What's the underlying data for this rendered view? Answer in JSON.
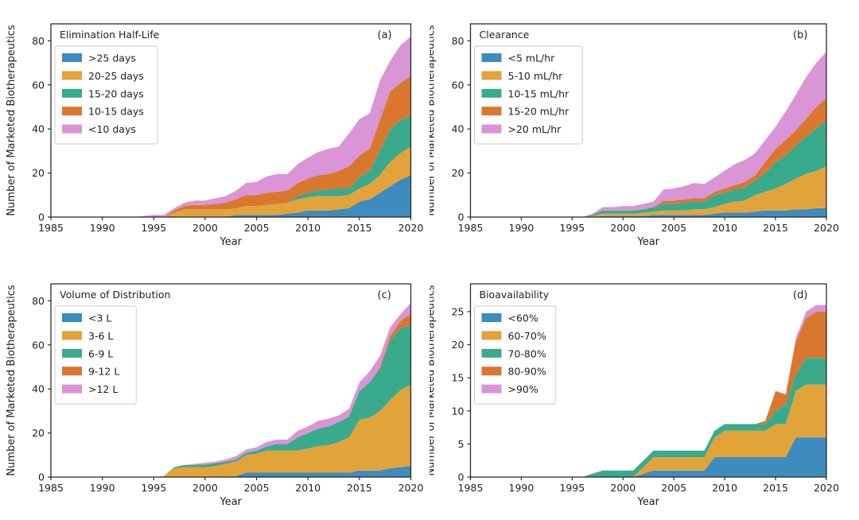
{
  "figure": {
    "background": "#ffffff",
    "shared_ylabel": "Number of Marketed Biotherapeutics",
    "shared_xlabel": "Year"
  },
  "palette": {
    "blue": "#3e8cbe",
    "gold": "#e3a33b",
    "green": "#3aaa8c",
    "orange": "#d9772f",
    "pink": "#d995d5",
    "axis": "#2b2b2b",
    "legend_border": "#cccccc"
  },
  "chart_data": [
    {
      "type": "area",
      "stacked": true,
      "panel_letter": "(a)",
      "title": "Elimination Half-Life",
      "xlabel": "Year",
      "ylabel": "Number of Marketed Biotherapeutics",
      "xlim": [
        1985,
        2020
      ],
      "ylim": [
        0,
        87.7
      ],
      "x_ticks": [
        1985,
        1990,
        1995,
        2000,
        2005,
        2010,
        2015,
        2020
      ],
      "y_ticks": [
        0,
        20,
        40,
        60,
        80
      ],
      "legend_position": "upper left",
      "x": [
        1985,
        1986,
        1987,
        1988,
        1989,
        1990,
        1991,
        1992,
        1993,
        1994,
        1995,
        1996,
        1997,
        1998,
        1999,
        2000,
        2001,
        2002,
        2003,
        2004,
        2005,
        2006,
        2007,
        2008,
        2009,
        2010,
        2011,
        2012,
        2013,
        2014,
        2015,
        2016,
        2017,
        2018,
        2019,
        2020
      ],
      "series": [
        {
          "name": ">25 days",
          "color": "#3e8cbe",
          "values": [
            0,
            0,
            0,
            0,
            0,
            0,
            0,
            0,
            0,
            0,
            0,
            0,
            0,
            0,
            0,
            0,
            0,
            0,
            1,
            1,
            1,
            1,
            1,
            1.5,
            2,
            3,
            3,
            3,
            3.5,
            4,
            7,
            8,
            11,
            14,
            17,
            19
          ]
        },
        {
          "name": "20-25 days",
          "color": "#e3a33b",
          "values": [
            0,
            0,
            0,
            0,
            0,
            0,
            0,
            0,
            0,
            0,
            0,
            0,
            2,
            3.5,
            3.5,
            3.5,
            3.5,
            3.5,
            3,
            4,
            4,
            4.5,
            5,
            5,
            6,
            6,
            6.5,
            6.5,
            6,
            6,
            6,
            7,
            8,
            11,
            12,
            13
          ]
        },
        {
          "name": "15-20 days",
          "color": "#3aaa8c",
          "values": [
            0,
            0,
            0,
            0,
            0,
            0,
            0,
            0,
            0,
            0,
            0,
            0,
            0,
            0,
            0,
            0,
            0,
            0,
            0,
            0,
            0,
            0,
            0,
            0,
            1.5,
            2,
            2.5,
            3,
            3.5,
            3,
            5,
            6,
            11,
            15,
            15,
            14
          ]
        },
        {
          "name": "10-15 days",
          "color": "#d9772f",
          "values": [
            0,
            0,
            0,
            0,
            0,
            0,
            0,
            0,
            0,
            0,
            0,
            0,
            1,
            1.5,
            2,
            2,
            2.5,
            3,
            4,
            5,
            5,
            5.5,
            5.5,
            5.5,
            6,
            6.5,
            7,
            7,
            8,
            10,
            10,
            10,
            14,
            17,
            17,
            18
          ]
        },
        {
          "name": "<10 days",
          "color": "#d995d5",
          "values": [
            0,
            0,
            0,
            0,
            0,
            0,
            0,
            0,
            0,
            0.5,
            1,
            1,
            1,
            1.5,
            2,
            2,
            2.5,
            3,
            4,
            5.5,
            6,
            7.5,
            8,
            7.5,
            8.5,
            9.5,
            10.5,
            11.5,
            11,
            15,
            16.5,
            16,
            18,
            14,
            17,
            18
          ]
        }
      ]
    },
    {
      "type": "area",
      "stacked": true,
      "panel_letter": "(b)",
      "title": "Clearance",
      "xlabel": "Year",
      "ylabel": "Number of Marketed Biotherapeutics",
      "xlim": [
        1985,
        2020
      ],
      "ylim": [
        0,
        87.7
      ],
      "x_ticks": [
        1985,
        1990,
        1995,
        2000,
        2005,
        2010,
        2015,
        2020
      ],
      "y_ticks": [
        0,
        20,
        40,
        60,
        80
      ],
      "legend_position": "upper left",
      "x": [
        1985,
        1986,
        1987,
        1988,
        1989,
        1990,
        1991,
        1992,
        1993,
        1994,
        1995,
        1996,
        1997,
        1998,
        1999,
        2000,
        2001,
        2002,
        2003,
        2004,
        2005,
        2006,
        2007,
        2008,
        2009,
        2010,
        2011,
        2012,
        2013,
        2014,
        2015,
        2016,
        2017,
        2018,
        2019,
        2020
      ],
      "series": [
        {
          "name": "<5 mL/hr",
          "color": "#3e8cbe",
          "values": [
            0,
            0,
            0,
            0,
            0,
            0,
            0,
            0,
            0,
            0,
            0,
            0,
            0,
            0.5,
            0.5,
            0.5,
            0.5,
            0.5,
            1,
            1,
            1,
            1,
            1,
            1,
            1.5,
            2,
            2,
            2,
            2.5,
            3,
            3,
            3,
            3.5,
            3.5,
            4,
            4
          ]
        },
        {
          "name": "5-10 mL/hr",
          "color": "#e3a33b",
          "values": [
            0,
            0,
            0,
            0,
            0,
            0,
            0,
            0,
            0,
            0,
            0,
            0,
            0.5,
            1,
            1,
            1,
            1,
            1.5,
            1.5,
            2,
            2,
            2,
            2.5,
            2.5,
            3,
            4,
            5,
            5.5,
            7.5,
            8.5,
            10,
            12,
            14,
            16,
            17,
            19
          ]
        },
        {
          "name": "10-15 mL/hr",
          "color": "#3aaa8c",
          "values": [
            0,
            0,
            0,
            0,
            0,
            0,
            0,
            0,
            0,
            0,
            0,
            0,
            0.5,
            1.5,
            1.5,
            1.5,
            1.5,
            1.5,
            2,
            3,
            3,
            3.5,
            3.5,
            3.5,
            5.5,
            5,
            5.5,
            6,
            6.5,
            8.5,
            12,
            13,
            15,
            17,
            19,
            21
          ]
        },
        {
          "name": "15-20 mL/hr",
          "color": "#d9772f",
          "values": [
            0,
            0,
            0,
            0,
            0,
            0,
            0,
            0,
            0,
            0,
            0,
            0,
            0,
            0,
            0,
            0,
            0,
            0,
            0,
            1.5,
            1.5,
            1.5,
            1.5,
            1.5,
            1.5,
            2,
            2,
            2.5,
            2.5,
            5,
            6,
            7,
            7,
            8,
            10,
            10
          ]
        },
        {
          "name": ">20 mL/hr",
          "color": "#d995d5",
          "values": [
            0,
            0,
            0,
            0,
            0,
            0,
            0,
            0,
            0,
            0,
            0,
            0,
            0.5,
            1.5,
            1.5,
            2,
            2,
            2.5,
            2.5,
            5,
            5.5,
            6,
            7,
            6.5,
            6.5,
            8,
            9.5,
            10,
            10,
            10,
            10,
            13,
            16,
            19,
            20,
            21
          ]
        }
      ]
    },
    {
      "type": "area",
      "stacked": true,
      "panel_letter": "(c)",
      "title": "Volume of Distribution",
      "xlabel": "Year",
      "ylabel": "Number of Marketed Biotherapeutics",
      "xlim": [
        1985,
        2020
      ],
      "ylim": [
        0,
        87.7
      ],
      "x_ticks": [
        1985,
        1990,
        1995,
        2000,
        2005,
        2010,
        2015,
        2020
      ],
      "y_ticks": [
        0,
        20,
        40,
        60,
        80
      ],
      "legend_position": "upper left",
      "x": [
        1985,
        1986,
        1987,
        1988,
        1989,
        1990,
        1991,
        1992,
        1993,
        1994,
        1995,
        1996,
        1997,
        1998,
        1999,
        2000,
        2001,
        2002,
        2003,
        2004,
        2005,
        2006,
        2007,
        2008,
        2009,
        2010,
        2011,
        2012,
        2013,
        2014,
        2015,
        2016,
        2017,
        2018,
        2019,
        2020
      ],
      "series": [
        {
          "name": "<3 L",
          "color": "#3e8cbe",
          "values": [
            0,
            0,
            0,
            0,
            0,
            0,
            0,
            0,
            0,
            0,
            0,
            0,
            0,
            0,
            0,
            0,
            0,
            0,
            0.5,
            2,
            2,
            2,
            2,
            2,
            2,
            2,
            2,
            2,
            2,
            2,
            3,
            3,
            3,
            4,
            4.5,
            5
          ]
        },
        {
          "name": "3-6 L",
          "color": "#e3a33b",
          "values": [
            0,
            0,
            0,
            0,
            0,
            0,
            0,
            0,
            0,
            0,
            0,
            0.5,
            4,
            4.5,
            4.5,
            4.5,
            5,
            6,
            6.5,
            8,
            8.5,
            10,
            10,
            10,
            10,
            11,
            12,
            12.5,
            14,
            16,
            23,
            24,
            27,
            31,
            35,
            37
          ]
        },
        {
          "name": "6-9 L",
          "color": "#3aaa8c",
          "values": [
            0,
            0,
            0,
            0,
            0,
            0,
            0,
            0,
            0,
            0,
            0,
            0,
            0.5,
            1,
            1,
            1.2,
            1.3,
            1,
            1,
            1,
            1.5,
            2,
            3,
            3,
            6,
            7,
            8,
            8.5,
            9,
            9.5,
            13,
            16,
            19,
            27,
            28,
            27
          ]
        },
        {
          "name": "9-12 L",
          "color": "#d9772f",
          "values": [
            0,
            0,
            0,
            0,
            0,
            0,
            0,
            0,
            0,
            0,
            0,
            0,
            0,
            0,
            0,
            0,
            0,
            0,
            0,
            0,
            0,
            0,
            0,
            0,
            0,
            0,
            0,
            0,
            0,
            0,
            0,
            0,
            1,
            2,
            3.5,
            5
          ]
        },
        {
          "name": ">12 L",
          "color": "#d995d5",
          "values": [
            0,
            0,
            0,
            0,
            0,
            0,
            0,
            0,
            0,
            0,
            0,
            0,
            0,
            0,
            0.5,
            0.8,
            0.7,
            1,
            1.5,
            1.5,
            1.5,
            2,
            2,
            2,
            3,
            3,
            3.5,
            3.5,
            3,
            3.5,
            4,
            5,
            5,
            4,
            3,
            5
          ]
        }
      ]
    },
    {
      "type": "area",
      "stacked": true,
      "panel_letter": "(d)",
      "title": "Bioavailability",
      "xlabel": "Year",
      "ylabel": "Number of Marketed Biotherapeutics",
      "xlim": [
        1985,
        2020
      ],
      "ylim": [
        0,
        29.2
      ],
      "x_ticks": [
        1985,
        1990,
        1995,
        2000,
        2005,
        2010,
        2015,
        2020
      ],
      "y_ticks": [
        0,
        5,
        10,
        15,
        20,
        25
      ],
      "legend_position": "upper left",
      "x": [
        1985,
        1986,
        1987,
        1988,
        1989,
        1990,
        1991,
        1992,
        1993,
        1994,
        1995,
        1996,
        1997,
        1998,
        1999,
        2000,
        2001,
        2002,
        2003,
        2004,
        2005,
        2006,
        2007,
        2008,
        2009,
        2010,
        2011,
        2012,
        2013,
        2014,
        2015,
        2016,
        2017,
        2018,
        2019,
        2020
      ],
      "series": [
        {
          "name": "<60%",
          "color": "#3e8cbe",
          "values": [
            0,
            0,
            0,
            0,
            0,
            0,
            0,
            0,
            0,
            0,
            0,
            0,
            0,
            0,
            0,
            0,
            0,
            0.5,
            1,
            1,
            1,
            1,
            1,
            1,
            3,
            3,
            3,
            3,
            3,
            3,
            3,
            3,
            6,
            6,
            6,
            6
          ]
        },
        {
          "name": "60-70%",
          "color": "#e3a33b",
          "values": [
            0,
            0,
            0,
            0,
            0,
            0,
            0,
            0,
            0,
            0,
            0,
            0,
            0,
            0,
            0,
            0,
            0,
            1,
            2,
            2,
            2,
            2,
            2,
            2,
            3,
            4,
            4,
            4,
            4,
            4,
            5,
            5,
            7,
            8,
            8,
            8
          ]
        },
        {
          "name": "70-80%",
          "color": "#3aaa8c",
          "values": [
            0,
            0,
            0,
            0,
            0,
            0,
            0,
            0,
            0,
            0,
            0,
            0,
            0.5,
            1,
            1,
            1,
            1,
            1,
            1,
            1,
            1,
            1,
            1,
            1,
            1,
            1,
            1,
            1,
            1,
            1,
            2,
            3,
            2.5,
            4,
            4,
            4
          ]
        },
        {
          "name": "80-90%",
          "color": "#d9772f",
          "values": [
            0,
            0,
            0,
            0,
            0,
            0,
            0,
            0,
            0,
            0,
            0,
            0,
            0,
            0,
            0,
            0,
            0,
            0,
            0,
            0,
            0,
            0,
            0,
            0,
            0,
            0,
            0,
            0,
            0,
            0.5,
            3,
            1.5,
            5,
            6,
            7,
            7
          ]
        },
        {
          "name": ">90%",
          "color": "#d995d5",
          "values": [
            0,
            0,
            0,
            0,
            0,
            0,
            0,
            0,
            0,
            0,
            0,
            0,
            0,
            0,
            0,
            0,
            0,
            0,
            0,
            0,
            0,
            0,
            0,
            0,
            0,
            0,
            0,
            0,
            0,
            0,
            0,
            0,
            0.5,
            1,
            1,
            1
          ]
        }
      ]
    }
  ]
}
